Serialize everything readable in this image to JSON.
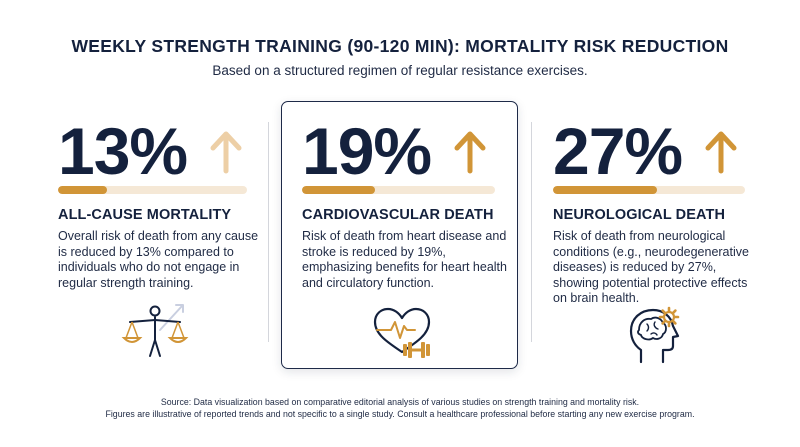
{
  "header": {
    "title": "WEEKLY STRENGTH TRAINING (90-120 MIN): MORTALITY RISK REDUCTION",
    "subtitle": "Based on a structured regimen of regular resistance exercises."
  },
  "stats": [
    {
      "value": "13%",
      "reduction_percent": 13,
      "heading": "ALL-CAUSE MORTALITY",
      "description": "Overall risk of death from any cause is reduced by 13% compared to individuals who do not engage in regular strength training.",
      "icon": "balance-scale-person-icon",
      "arrow_color": "#edcfa6"
    },
    {
      "value": "19%",
      "reduction_percent": 19,
      "heading": "CARDIOVASCULAR DEATH",
      "description": "Risk of death from heart disease and stroke is reduced by 19%, emphasizing benefits for heart health and circulatory function.",
      "icon": "heart-dumbbell-icon",
      "arrow_color": "#d19537"
    },
    {
      "value": "27%",
      "reduction_percent": 27,
      "heading": "NEUROLOGICAL DEATH",
      "description": "Risk of death from neurological conditions (e.g., neurodegenerative diseases) is reduced by 27%, showing potential protective effects on brain health.",
      "icon": "brain-gear-icon",
      "arrow_color": "#d19537"
    }
  ],
  "footer": {
    "source_line1": "Source: Data visualization based on comparative editorial analysis of various studies on strength training and mortality risk.",
    "source_line2": "Figures are illustrative of reported trends and not specific to a single study. Consult a healthcare professional before starting any new exercise program."
  },
  "colors": {
    "navy": "#14213d",
    "accent": "#d19537",
    "accent_light": "#f5e8d6"
  }
}
